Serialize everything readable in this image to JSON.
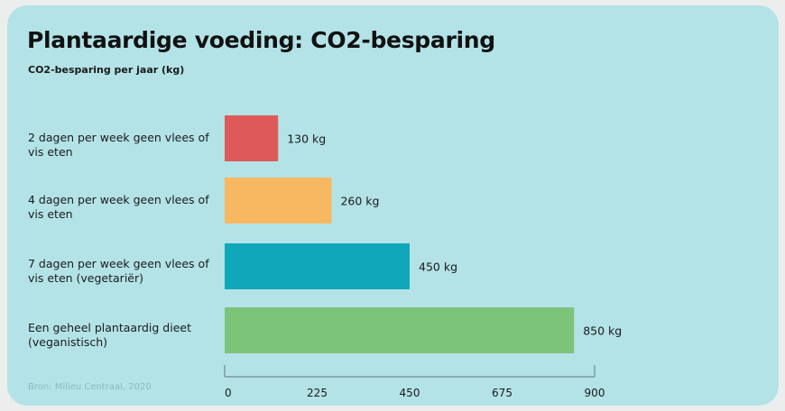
{
  "chart_data": {
    "type": "bar",
    "orientation": "horizontal",
    "title": "Plantaardige voeding: CO2-besparing",
    "subtitle": "CO2-besparing per jaar (kg)",
    "categories": [
      "2 dagen per week geen vlees of vis eten",
      "4 dagen per week geen vlees of vis eten",
      "7 dagen per week geen vlees of vis eten (vegetariër)",
      "Een geheel plantaardig dieet (veganistisch)"
    ],
    "values": [
      130,
      260,
      450,
      850
    ],
    "value_labels": [
      "130 kg",
      "260 kg",
      "450 kg",
      "850 kg"
    ],
    "bar_colors": [
      "#de5a59",
      "#f8b862",
      "#11a7ba",
      "#7cc47a"
    ],
    "xlim": [
      0,
      900
    ],
    "xticks": [
      0,
      225,
      450,
      675,
      900
    ],
    "xtick_labels": [
      "0",
      "225",
      "450",
      "675",
      "900"
    ],
    "grid": false,
    "source": "Bron: Milieu Centraal, 2020"
  }
}
